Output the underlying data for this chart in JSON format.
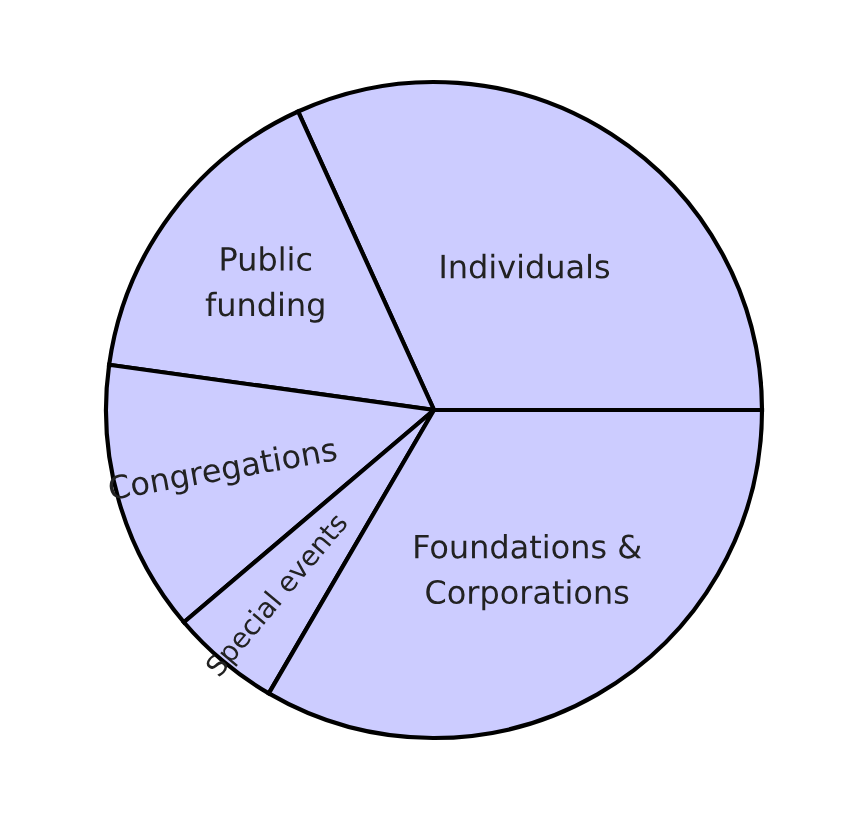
{
  "chart_data": {
    "type": "pie",
    "categories": [
      "Individuals",
      "Public\nfunding",
      "Congregations",
      "Special events",
      "Foundations &\nCorporations"
    ],
    "values": [
      31.8,
      16.0,
      13.4,
      5.4,
      33.4
    ],
    "colors": [
      "#ccccff",
      "#ccccff",
      "#ccccff",
      "#ccccff",
      "#ccccff"
    ]
  }
}
